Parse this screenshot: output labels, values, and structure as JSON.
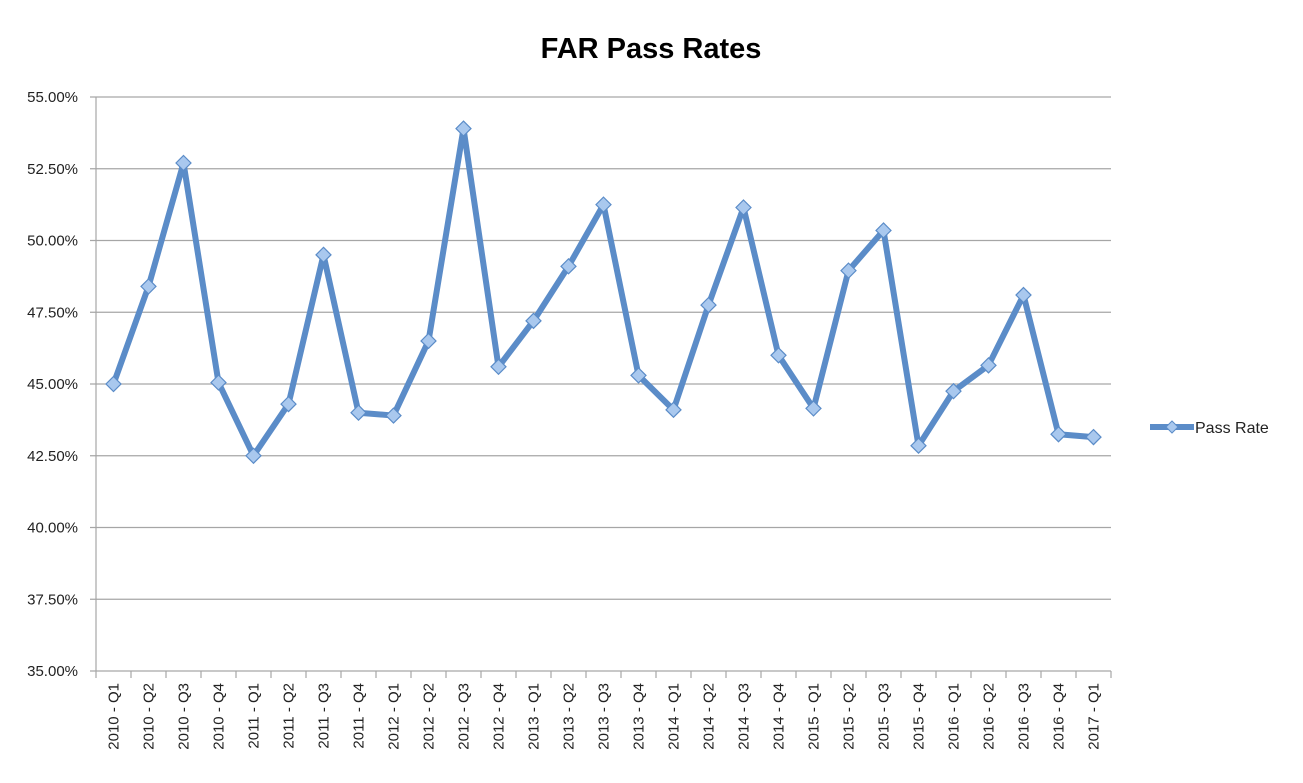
{
  "chart_data": {
    "type": "line",
    "title": "FAR Pass Rates",
    "xlabel": "",
    "ylabel": "",
    "categories": [
      "2010 - Q1",
      "2010 - Q2",
      "2010 - Q3",
      "2010 - Q4",
      "2011 - Q1",
      "2011 - Q2",
      "2011 - Q3",
      "2011 - Q4",
      "2012 - Q1",
      "2012 - Q2",
      "2012 - Q3",
      "2012 - Q4",
      "2013 - Q1",
      "2013 - Q2",
      "2013 - Q3",
      "2013 - Q4",
      "2014 - Q1",
      "2014 - Q2",
      "2014 - Q3",
      "2014 - Q4",
      "2015 - Q1",
      "2015 - Q2",
      "2015 - Q3",
      "2015 - Q4",
      "2016 - Q1",
      "2016 - Q2",
      "2016 - Q3",
      "2016 - Q4",
      "2017 - Q1"
    ],
    "series": [
      {
        "name": "Pass Rate",
        "color": "#6a98cf",
        "values": [
          45.0,
          48.4,
          52.7,
          45.05,
          42.5,
          44.3,
          49.5,
          44.0,
          43.9,
          46.5,
          53.9,
          45.6,
          47.2,
          49.1,
          51.25,
          45.3,
          44.1,
          47.75,
          51.15,
          46.0,
          44.15,
          48.95,
          50.35,
          42.85,
          44.75,
          45.65,
          48.1,
          43.25,
          43.15
        ]
      }
    ],
    "ylim": [
      35.0,
      55.0
    ],
    "yticks": [
      "35.00%",
      "37.50%",
      "40.00%",
      "42.50%",
      "45.00%",
      "47.50%",
      "50.00%",
      "52.50%",
      "55.00%"
    ],
    "ytick_values": [
      35.0,
      37.5,
      40.0,
      42.5,
      45.0,
      47.5,
      50.0,
      52.5,
      55.0
    ],
    "grid": true,
    "legend": "right",
    "marker": "diamond"
  }
}
